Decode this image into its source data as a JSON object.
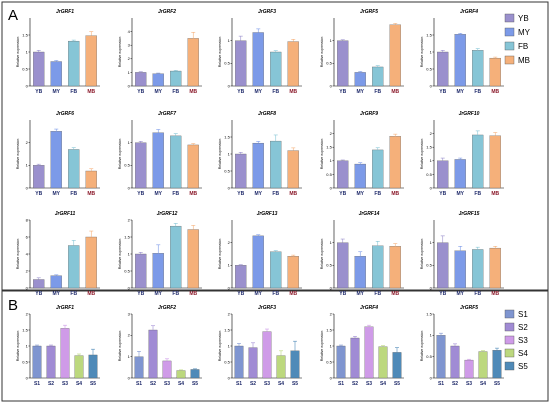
{
  "panels": [
    {
      "letter": "A",
      "legend": [
        {
          "label": "YB",
          "color": "#9a90cd"
        },
        {
          "label": "MY",
          "color": "#7c9ae8"
        },
        {
          "label": "FB",
          "color": "#86c5d6"
        },
        {
          "label": "MB",
          "color": "#f5b07a"
        }
      ]
    },
    {
      "letter": "B",
      "legend": [
        {
          "label": "S1",
          "color": "#7f95d0"
        },
        {
          "label": "S2",
          "color": "#a08bd4"
        },
        {
          "label": "S3",
          "color": "#cf9be8"
        },
        {
          "label": "S4",
          "color": "#bcd87e"
        },
        {
          "label": "S5",
          "color": "#4f8ab8"
        }
      ]
    }
  ],
  "chart_data": [
    {
      "type": "bar",
      "panel": "A",
      "title": "JrGRF1",
      "ylabel": "Relative expression",
      "categories": [
        "YB",
        "MY",
        "FB",
        "MB"
      ],
      "values": [
        1.0,
        0.72,
        1.32,
        1.48
      ],
      "errors": [
        0.05,
        0.03,
        0.03,
        0.12
      ],
      "ylim": [
        0,
        2.0
      ],
      "yticks": [
        0,
        0.5,
        1.0,
        1.5
      ]
    },
    {
      "type": "bar",
      "panel": "A",
      "title": "JrGRF2",
      "ylabel": "Relative expression",
      "categories": [
        "YB",
        "MY",
        "FB",
        "MB"
      ],
      "values": [
        1.0,
        0.9,
        1.1,
        3.5
      ],
      "errors": [
        0.05,
        0.05,
        0.05,
        0.45
      ],
      "ylim": [
        0,
        5
      ],
      "yticks": [
        0,
        1,
        2,
        3,
        4
      ]
    },
    {
      "type": "bar",
      "panel": "A",
      "title": "JrGRF3",
      "ylabel": "Relative expression",
      "categories": [
        "YB",
        "MY",
        "FB",
        "MB"
      ],
      "values": [
        1.0,
        1.18,
        0.75,
        0.98
      ],
      "errors": [
        0.1,
        0.08,
        0.03,
        0.05
      ],
      "ylim": [
        0,
        1.5
      ],
      "yticks": [
        0,
        0.5,
        1.0
      ]
    },
    {
      "type": "bar",
      "panel": "A",
      "title": "JrGRF5",
      "ylabel": "Relative expression",
      "categories": [
        "YB",
        "MY",
        "FB",
        "MB"
      ],
      "values": [
        1.0,
        0.3,
        0.42,
        1.35
      ],
      "errors": [
        0.02,
        0.02,
        0.03,
        0.03
      ],
      "ylim": [
        0,
        1.5
      ],
      "yticks": [
        0,
        0.5,
        1.0
      ]
    },
    {
      "type": "bar",
      "panel": "A",
      "title": "JrGRF4",
      "ylabel": "Relative expression",
      "categories": [
        "YB",
        "MY",
        "FB",
        "MB"
      ],
      "values": [
        1.0,
        1.52,
        1.05,
        0.82
      ],
      "errors": [
        0.05,
        0.03,
        0.05,
        0.03
      ],
      "ylim": [
        0,
        2.0
      ],
      "yticks": [
        0,
        0.5,
        1.0,
        1.5
      ]
    },
    {
      "type": "bar",
      "panel": "A",
      "title": "JrGRF6",
      "ylabel": "Relative expression",
      "categories": [
        "YB",
        "MY",
        "FB",
        "MB"
      ],
      "values": [
        1.0,
        2.5,
        1.7,
        0.75
      ],
      "errors": [
        0.05,
        0.1,
        0.08,
        0.1
      ],
      "ylim": [
        0,
        3
      ],
      "yticks": [
        0,
        1,
        2
      ]
    },
    {
      "type": "bar",
      "panel": "A",
      "title": "JrGRF7",
      "ylabel": "Relative expression",
      "categories": [
        "YB",
        "MY",
        "FB",
        "MB"
      ],
      "values": [
        1.0,
        1.22,
        1.15,
        0.95
      ],
      "errors": [
        0.03,
        0.07,
        0.05,
        0.03
      ],
      "ylim": [
        0,
        1.5
      ],
      "yticks": [
        0,
        0.5,
        1.0
      ]
    },
    {
      "type": "bar",
      "panel": "A",
      "title": "JrGRF8",
      "ylabel": "Relative expression",
      "categories": [
        "YB",
        "MY",
        "FB",
        "MB"
      ],
      "values": [
        1.0,
        1.32,
        1.38,
        1.1
      ],
      "errors": [
        0.05,
        0.05,
        0.18,
        0.08
      ],
      "ylim": [
        0,
        2.0
      ],
      "yticks": [
        0,
        0.5,
        1.0,
        1.5
      ]
    },
    {
      "type": "bar",
      "panel": "A",
      "title": "JrGRF9",
      "ylabel": "Relative expression",
      "categories": [
        "YB",
        "MY",
        "FB",
        "MB"
      ],
      "values": [
        1.0,
        0.88,
        1.4,
        1.9
      ],
      "errors": [
        0.03,
        0.05,
        0.08,
        0.08
      ],
      "ylim": [
        0,
        2.5
      ],
      "yticks": [
        0,
        0.5,
        1.0,
        1.5,
        2.0
      ]
    },
    {
      "type": "bar",
      "panel": "A",
      "title": "JrGRF10",
      "ylabel": "Relative expression",
      "categories": [
        "YB",
        "MY",
        "FB",
        "MB"
      ],
      "values": [
        1.0,
        1.05,
        1.95,
        1.92
      ],
      "errors": [
        0.1,
        0.05,
        0.15,
        0.12
      ],
      "ylim": [
        0,
        2.5
      ],
      "yticks": [
        0,
        0.5,
        1.0,
        1.5,
        2.0
      ]
    },
    {
      "type": "bar",
      "panel": "A",
      "title": "JrGRF11",
      "ylabel": "Relative expression",
      "categories": [
        "YB",
        "MY",
        "FB",
        "MB"
      ],
      "values": [
        1.0,
        1.45,
        5.0,
        6.0
      ],
      "errors": [
        0.2,
        0.1,
        0.6,
        0.7
      ],
      "ylim": [
        0,
        8
      ],
      "yticks": [
        0,
        2,
        4,
        6,
        8
      ]
    },
    {
      "type": "bar",
      "panel": "A",
      "title": "JrGRF12",
      "ylabel": "Relative expression",
      "categories": [
        "YB",
        "MY",
        "FB",
        "MB"
      ],
      "values": [
        1.0,
        1.02,
        1.82,
        1.72
      ],
      "errors": [
        0.05,
        0.25,
        0.08,
        0.12
      ],
      "ylim": [
        0,
        2.0
      ],
      "yticks": [
        0,
        0.5,
        1.0,
        1.5,
        2.0
      ]
    },
    {
      "type": "bar",
      "panel": "A",
      "title": "JrGRF13",
      "ylabel": "Relative expression",
      "categories": [
        "YB",
        "MY",
        "FB",
        "MB"
      ],
      "values": [
        1.0,
        2.3,
        1.6,
        1.4
      ],
      "errors": [
        0.03,
        0.05,
        0.05,
        0.05
      ],
      "ylim": [
        0,
        3
      ],
      "yticks": [
        0,
        1,
        2
      ]
    },
    {
      "type": "bar",
      "panel": "A",
      "title": "JrGRF14",
      "ylabel": "Relative expression",
      "categories": [
        "YB",
        "MY",
        "FB",
        "MB"
      ],
      "values": [
        1.0,
        0.7,
        0.93,
        0.92
      ],
      "errors": [
        0.08,
        0.1,
        0.1,
        0.06
      ],
      "ylim": [
        0,
        1.5
      ],
      "yticks": [
        0,
        0.5,
        1.0
      ]
    },
    {
      "type": "bar",
      "panel": "A",
      "title": "JrGRF15",
      "ylabel": "Relative expression",
      "categories": [
        "YB",
        "MY",
        "FB",
        "MB"
      ],
      "values": [
        1.0,
        0.82,
        0.85,
        0.88
      ],
      "errors": [
        0.15,
        0.1,
        0.05,
        0.04
      ],
      "ylim": [
        0,
        1.5
      ],
      "yticks": [
        0,
        0.5,
        1.0
      ]
    },
    {
      "type": "bar",
      "panel": "B",
      "title": "JrGRF1",
      "ylabel": "Relative expression",
      "categories": [
        "S1",
        "S2",
        "S3",
        "S4",
        "S5"
      ],
      "values": [
        1.0,
        1.0,
        1.55,
        0.7,
        0.72
      ],
      "errors": [
        0.03,
        0.03,
        0.1,
        0.05,
        0.18
      ],
      "ylim": [
        0,
        2.0
      ],
      "yticks": [
        0,
        0.5,
        1.0,
        1.5,
        2.0
      ]
    },
    {
      "type": "bar",
      "panel": "B",
      "title": "JrGRF2",
      "ylabel": "Relative expression",
      "categories": [
        "S1",
        "S2",
        "S3",
        "S4",
        "S5"
      ],
      "values": [
        1.0,
        2.25,
        0.8,
        0.35,
        0.4
      ],
      "errors": [
        0.25,
        0.2,
        0.1,
        0.03,
        0.03
      ],
      "ylim": [
        0,
        3
      ],
      "yticks": [
        0,
        1,
        2,
        3
      ]
    },
    {
      "type": "bar",
      "panel": "B",
      "title": "JrGRF3",
      "ylabel": "Relative expression",
      "categories": [
        "S1",
        "S2",
        "S3",
        "S4",
        "S5"
      ],
      "values": [
        1.0,
        0.95,
        1.45,
        0.7,
        0.85
      ],
      "errors": [
        0.08,
        0.15,
        0.08,
        0.15,
        0.3
      ],
      "ylim": [
        0,
        2.0
      ],
      "yticks": [
        0,
        0.5,
        1.0,
        1.5,
        2.0
      ]
    },
    {
      "type": "bar",
      "panel": "B",
      "title": "JrGRF4",
      "ylabel": "Relative expression",
      "categories": [
        "S1",
        "S2",
        "S3",
        "S4",
        "S5"
      ],
      "values": [
        1.0,
        1.25,
        1.6,
        0.98,
        0.8
      ],
      "errors": [
        0.03,
        0.05,
        0.05,
        0.03,
        0.15
      ],
      "ylim": [
        0,
        2.0
      ],
      "yticks": [
        0,
        0.5,
        1.0,
        1.5,
        2.0
      ]
    },
    {
      "type": "bar",
      "panel": "B",
      "title": "JrGRF5",
      "ylabel": "Relative expression",
      "categories": [
        "S1",
        "S2",
        "S3",
        "S4",
        "S5"
      ],
      "values": [
        1.0,
        0.75,
        0.42,
        0.62,
        0.65
      ],
      "errors": [
        0.05,
        0.05,
        0.02,
        0.02,
        0.05
      ],
      "ylim": [
        0,
        1.5
      ],
      "yticks": [
        0,
        0.5,
        1.0,
        1.5
      ]
    }
  ]
}
